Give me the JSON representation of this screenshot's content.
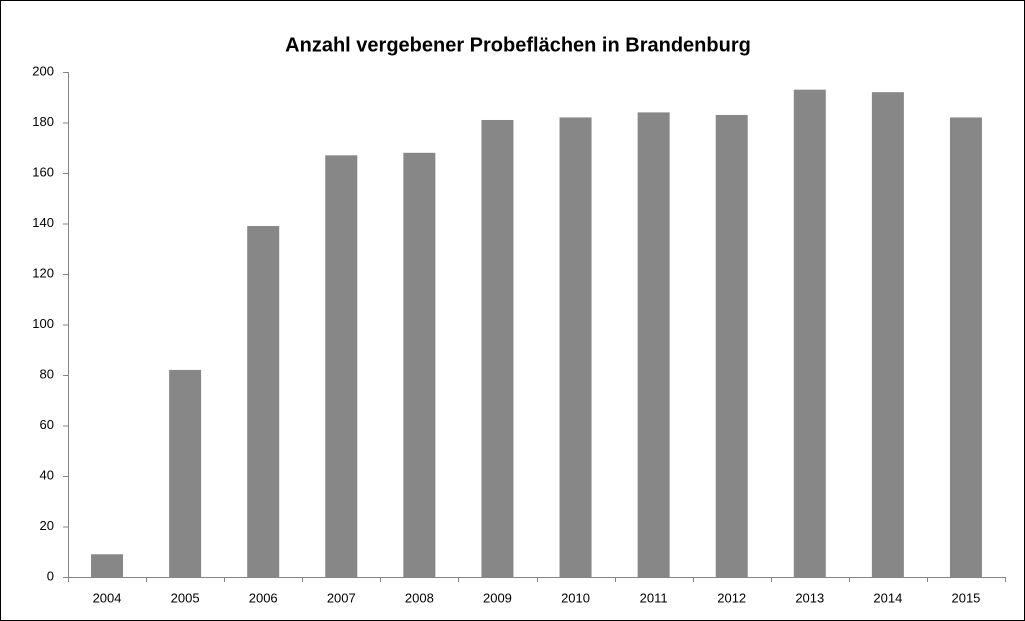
{
  "chart_data": {
    "type": "bar",
    "title": "Anzahl vergebener Probeflächen in Brandenburg",
    "categories": [
      "2004",
      "2005",
      "2006",
      "2007",
      "2008",
      "2009",
      "2010",
      "2011",
      "2012",
      "2013",
      "2014",
      "2015"
    ],
    "values": [
      9,
      82,
      139,
      167,
      168,
      181,
      182,
      184,
      183,
      193,
      192,
      182
    ],
    "color": "#878787",
    "ylim": [
      0,
      200
    ],
    "yticks": [
      0,
      20,
      40,
      60,
      80,
      100,
      120,
      140,
      160,
      180,
      200
    ],
    "grid": false
  }
}
